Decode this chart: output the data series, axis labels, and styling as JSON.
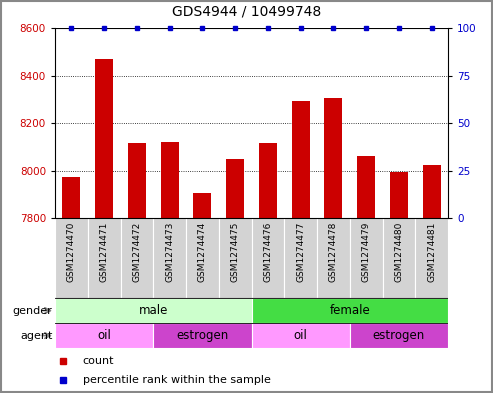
{
  "title": "GDS4944 / 10499748",
  "samples": [
    "GSM1274470",
    "GSM1274471",
    "GSM1274472",
    "GSM1274473",
    "GSM1274474",
    "GSM1274475",
    "GSM1274476",
    "GSM1274477",
    "GSM1274478",
    "GSM1274479",
    "GSM1274480",
    "GSM1274481"
  ],
  "counts": [
    7975,
    8470,
    8115,
    8120,
    7905,
    8050,
    8115,
    8295,
    8305,
    8060,
    7995,
    8025
  ],
  "percentile_ranks": [
    100,
    100,
    100,
    100,
    100,
    100,
    100,
    100,
    100,
    100,
    100,
    100
  ],
  "ylim_left": [
    7800,
    8600
  ],
  "ylim_right": [
    0,
    100
  ],
  "yticks_left": [
    7800,
    8000,
    8200,
    8400,
    8600
  ],
  "yticks_right": [
    0,
    25,
    50,
    75,
    100
  ],
  "bar_color": "#cc0000",
  "dot_color": "#0000cc",
  "gender_groups": [
    {
      "label": "male",
      "start": 0,
      "end": 6,
      "color": "#ccffcc"
    },
    {
      "label": "female",
      "start": 6,
      "end": 12,
      "color": "#44dd44"
    }
  ],
  "agent_groups": [
    {
      "label": "oil",
      "start": 0,
      "end": 3,
      "color": "#ff99ff"
    },
    {
      "label": "estrogen",
      "start": 3,
      "end": 6,
      "color": "#cc44cc"
    },
    {
      "label": "oil",
      "start": 6,
      "end": 9,
      "color": "#ff99ff"
    },
    {
      "label": "estrogen",
      "start": 9,
      "end": 12,
      "color": "#cc44cc"
    }
  ],
  "xlabel_bg": "#d3d3d3",
  "border_color": "#aaaaaa",
  "fig_border_color": "#888888"
}
